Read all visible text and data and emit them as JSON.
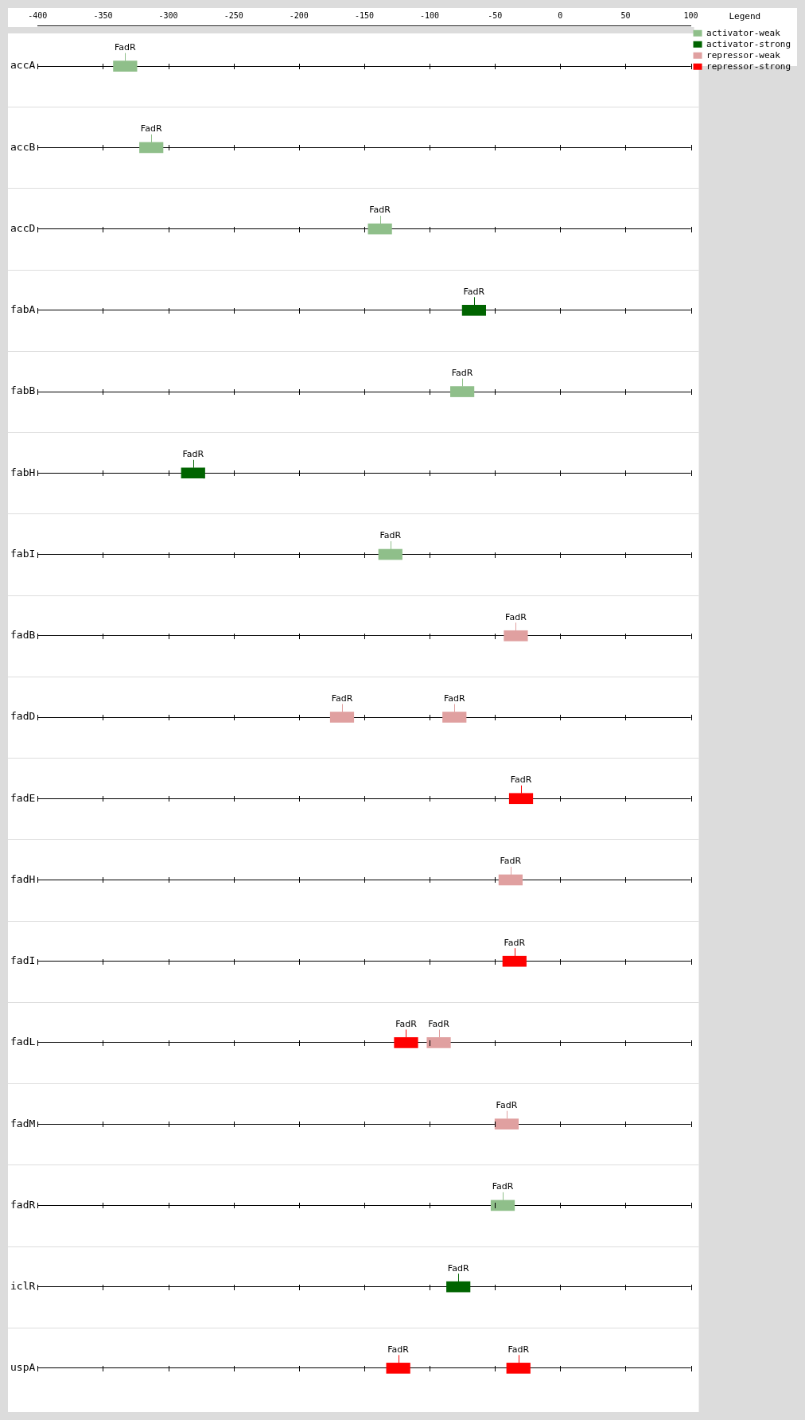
{
  "chart_data": {
    "type": "bar",
    "orientation": "horizontal",
    "legend_title": "Legend",
    "legend": "top right",
    "grid": "y",
    "categories": [
      "accA",
      "accB",
      "accD",
      "fabA",
      "fabB",
      "fabH",
      "fabI",
      "fadB",
      "fadD",
      "fadE",
      "fadH",
      "fadI",
      "fadL",
      "fadM",
      "fadR",
      "iclR",
      "uspA"
    ],
    "xlim": [
      -400,
      100
    ],
    "xticks": [
      -400,
      -350,
      -300,
      -250,
      -200,
      -150,
      -100,
      -50,
      0,
      50,
      100
    ],
    "series": [
      {
        "name": "activator-weak",
        "color": "#8fbf8a",
        "base": [
          -342,
          -322,
          -147,
          null,
          -84,
          null,
          -139,
          null,
          null,
          null,
          null,
          null,
          null,
          null,
          -53,
          null,
          null
        ],
        "values": [
          18,
          18,
          18,
          null,
          18,
          null,
          18,
          null,
          null,
          null,
          null,
          null,
          null,
          null,
          18,
          null,
          null
        ],
        "value_labels": [
          "FadR",
          "FadR",
          "FadR",
          null,
          "FadR",
          null,
          "FadR",
          null,
          null,
          null,
          null,
          null,
          null,
          null,
          "FadR",
          null,
          null
        ]
      },
      {
        "name": "activator-strong",
        "color": "#006400",
        "base": [
          null,
          null,
          null,
          -75,
          null,
          -290,
          null,
          null,
          null,
          null,
          null,
          null,
          null,
          null,
          null,
          -87,
          null
        ],
        "values": [
          null,
          null,
          null,
          18,
          null,
          18,
          null,
          null,
          null,
          null,
          null,
          null,
          null,
          null,
          null,
          18,
          null
        ],
        "value_labels": [
          null,
          null,
          null,
          "FadR",
          null,
          "FadR",
          null,
          null,
          null,
          null,
          null,
          null,
          null,
          null,
          null,
          "FadR",
          null
        ]
      },
      {
        "name": "repressor-weak",
        "color": "#e0a0a0",
        "base": [
          null,
          null,
          null,
          null,
          null,
          null,
          null,
          -43,
          -176,
          null,
          -47,
          null,
          -102,
          -50,
          null,
          null,
          null
        ],
        "values": [
          null,
          null,
          null,
          null,
          null,
          null,
          null,
          18,
          18,
          null,
          18,
          null,
          18,
          18,
          null,
          null,
          null
        ],
        "value_labels": [
          null,
          null,
          null,
          null,
          null,
          null,
          null,
          "FadR",
          "FadR",
          null,
          "FadR",
          null,
          "FadR",
          "FadR",
          null,
          null,
          null
        ]
      },
      {
        "name": "repressor-strong",
        "color": "#ff0000",
        "base": [
          null,
          null,
          null,
          null,
          null,
          null,
          null,
          null,
          null,
          -39,
          null,
          -44,
          -127,
          null,
          null,
          null,
          -133
        ],
        "values": [
          null,
          null,
          null,
          null,
          null,
          null,
          null,
          null,
          null,
          18,
          null,
          18,
          18,
          null,
          null,
          null,
          18
        ],
        "value_labels": [
          null,
          null,
          null,
          null,
          null,
          null,
          null,
          null,
          null,
          "FadR",
          null,
          "FadR",
          "FadR",
          null,
          null,
          null,
          "FadR"
        ]
      },
      {
        "color": "#e0a0a0",
        "base": [
          null,
          null,
          null,
          null,
          null,
          null,
          null,
          null,
          -90,
          null,
          null,
          null,
          null,
          null,
          null,
          null,
          null
        ],
        "values": [
          null,
          null,
          null,
          null,
          null,
          null,
          null,
          null,
          18,
          null,
          null,
          null,
          null,
          null,
          null,
          null,
          null
        ],
        "value_labels": [
          null,
          null,
          null,
          null,
          null,
          null,
          null,
          null,
          "FadR",
          null,
          null,
          null,
          null,
          null,
          null,
          null,
          null
        ]
      },
      {
        "color": "#ff0000",
        "base": [
          null,
          null,
          null,
          null,
          null,
          null,
          null,
          null,
          null,
          null,
          null,
          null,
          null,
          null,
          null,
          null,
          -41
        ],
        "values": [
          null,
          null,
          null,
          null,
          null,
          null,
          null,
          null,
          null,
          null,
          null,
          null,
          null,
          null,
          null,
          null,
          18
        ],
        "value_labels": [
          null,
          null,
          null,
          null,
          null,
          null,
          null,
          null,
          null,
          null,
          null,
          null,
          null,
          null,
          null,
          null,
          "FadR"
        ]
      }
    ]
  }
}
